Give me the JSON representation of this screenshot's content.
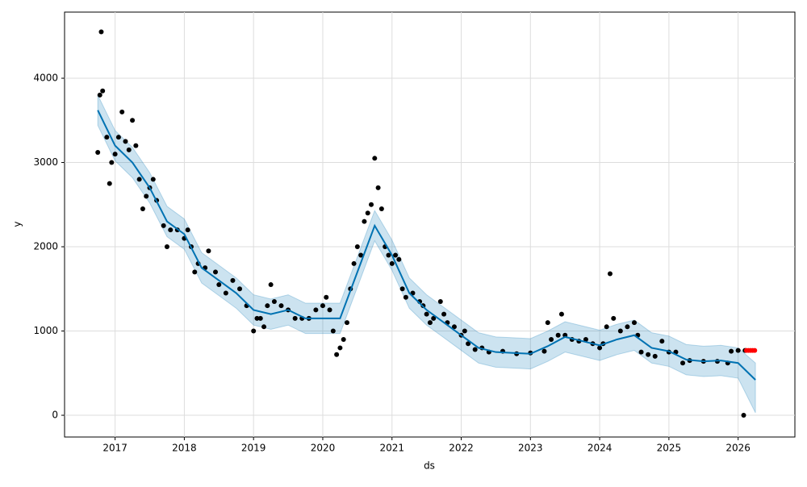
{
  "chart_data": {
    "type": "scatter",
    "xlabel": "ds",
    "ylabel": "y",
    "xlim": [
      2016.27,
      2026.82
    ],
    "ylim": [
      -258,
      4785
    ],
    "xticks": [
      2017,
      2018,
      2019,
      2020,
      2021,
      2022,
      2023,
      2024,
      2025,
      2026
    ],
    "yticks": [
      0,
      1000,
      2000,
      3000,
      4000
    ],
    "grid": true,
    "series": [
      {
        "color": "#000000",
        "x": [
          2016.75,
          2016.78,
          2016.8,
          2016.82,
          2016.88,
          2016.92,
          2016.95,
          2017.0,
          2017.05,
          2017.1,
          2017.15,
          2017.2,
          2017.25,
          2017.3,
          2017.35,
          2017.4,
          2017.45,
          2017.5,
          2017.55,
          2017.6,
          2017.7,
          2017.75,
          2017.8,
          2017.9,
          2018.0,
          2018.05,
          2018.1,
          2018.15,
          2018.2,
          2018.3,
          2018.35,
          2018.45,
          2018.5,
          2018.6,
          2018.7,
          2018.8,
          2018.9,
          2019.0,
          2019.05,
          2019.1,
          2019.15,
          2019.2,
          2019.25,
          2019.3,
          2019.4,
          2019.5,
          2019.6,
          2019.7,
          2019.8,
          2019.9,
          2020.0,
          2020.05,
          2020.1,
          2020.15,
          2020.2,
          2020.25,
          2020.3,
          2020.35,
          2020.4,
          2020.45,
          2020.5,
          2020.55,
          2020.6,
          2020.65,
          2020.7,
          2020.75,
          2020.8,
          2020.85,
          2020.9,
          2020.95,
          2021.0,
          2021.05,
          2021.1,
          2021.15,
          2021.2,
          2021.3,
          2021.4,
          2021.45,
          2021.5,
          2021.55,
          2021.6,
          2021.7,
          2021.75,
          2021.8,
          2021.9,
          2022.0,
          2022.05,
          2022.1,
          2022.2,
          2022.3,
          2022.4,
          2022.6,
          2022.8,
          2023.0,
          2023.2,
          2023.25,
          2023.3,
          2023.4,
          2023.45,
          2023.5,
          2023.6,
          2023.7,
          2023.8,
          2023.9,
          2024.0,
          2024.05,
          2024.1,
          2024.15,
          2024.2,
          2024.3,
          2024.4,
          2024.5,
          2024.55,
          2024.6,
          2024.7,
          2024.8,
          2024.9,
          2025.0,
          2025.1,
          2025.2,
          2025.3,
          2025.5,
          2025.7,
          2025.85,
          2025.9,
          2026.0,
          2026.08,
          2026.1
        ],
        "values": [
          3120,
          3800,
          4550,
          3850,
          3300,
          2750,
          3000,
          3100,
          3300,
          3600,
          3250,
          3150,
          3500,
          3200,
          2800,
          2450,
          2600,
          2700,
          2800,
          2550,
          2250,
          2000,
          2200,
          2200,
          2100,
          2200,
          2000,
          1700,
          1800,
          1750,
          1950,
          1700,
          1550,
          1450,
          1600,
          1500,
          1300,
          1000,
          1150,
          1150,
          1050,
          1300,
          1550,
          1350,
          1300,
          1250,
          1150,
          1150,
          1150,
          1250,
          1300,
          1400,
          1250,
          1000,
          720,
          800,
          900,
          1100,
          1500,
          1800,
          2000,
          1900,
          2300,
          2400,
          2500,
          3050,
          2700,
          2450,
          2000,
          1900,
          1800,
          1900,
          1850,
          1500,
          1400,
          1450,
          1350,
          1300,
          1200,
          1100,
          1150,
          1350,
          1200,
          1100,
          1050,
          950,
          1000,
          850,
          780,
          800,
          750,
          760,
          730,
          740,
          760,
          1100,
          900,
          950,
          1200,
          950,
          900,
          880,
          900,
          850,
          800,
          850,
          1050,
          1680,
          1150,
          1000,
          1050,
          1100,
          950,
          750,
          720,
          700,
          880,
          750,
          750,
          620,
          650,
          640,
          640,
          620,
          760,
          770,
          0,
          770
        ]
      },
      {
        "color": "#ff0000",
        "x": [
          2026.12,
          2026.15,
          2026.18,
          2026.21,
          2026.24
        ],
        "values": [
          770,
          770,
          770,
          770,
          770
        ]
      }
    ],
    "forecast": {
      "color": "#0072b2",
      "x": [
        2016.75,
        2017.0,
        2017.25,
        2017.5,
        2017.75,
        2018.0,
        2018.25,
        2018.5,
        2018.75,
        2019.0,
        2019.25,
        2019.5,
        2019.75,
        2020.0,
        2020.25,
        2020.5,
        2020.75,
        2021.0,
        2021.25,
        2021.5,
        2021.75,
        2022.0,
        2022.25,
        2022.5,
        2022.75,
        2023.0,
        2023.25,
        2023.5,
        2023.75,
        2024.0,
        2024.25,
        2024.5,
        2024.75,
        2025.0,
        2025.25,
        2025.5,
        2025.75,
        2026.0,
        2026.25
      ],
      "values": [
        3620,
        3200,
        3000,
        2700,
        2300,
        2150,
        1750,
        1600,
        1450,
        1250,
        1200,
        1250,
        1150,
        1150,
        1150,
        1700,
        2250,
        1900,
        1450,
        1250,
        1100,
        950,
        800,
        750,
        740,
        730,
        820,
        930,
        880,
        830,
        900,
        950,
        800,
        760,
        660,
        640,
        650,
        620,
        420
      ],
      "lower": [
        3440,
        3020,
        2820,
        2520,
        2120,
        1970,
        1570,
        1420,
        1270,
        1070,
        1020,
        1070,
        970,
        970,
        970,
        1520,
        2070,
        1720,
        1270,
        1070,
        920,
        770,
        620,
        570,
        560,
        550,
        640,
        750,
        700,
        650,
        720,
        770,
        620,
        580,
        480,
        460,
        470,
        440,
        30
      ],
      "upper": [
        3800,
        3380,
        3180,
        2880,
        2480,
        2330,
        1930,
        1780,
        1630,
        1430,
        1380,
        1430,
        1330,
        1330,
        1330,
        1880,
        2430,
        2080,
        1630,
        1430,
        1280,
        1130,
        980,
        930,
        920,
        910,
        1000,
        1110,
        1060,
        1010,
        1080,
        1130,
        980,
        940,
        840,
        820,
        830,
        800,
        620
      ]
    }
  }
}
